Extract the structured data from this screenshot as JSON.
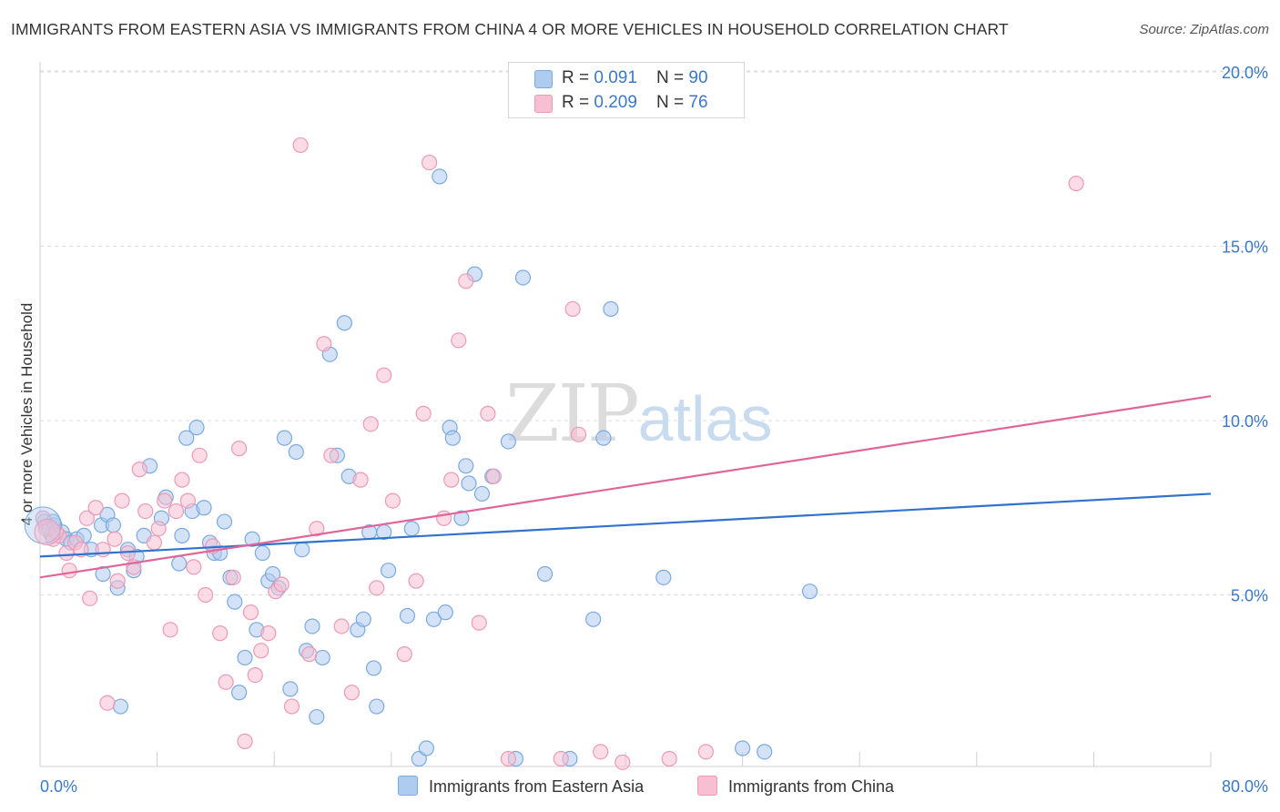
{
  "header": {
    "title": "IMMIGRANTS FROM EASTERN ASIA VS IMMIGRANTS FROM CHINA 4 OR MORE VEHICLES IN HOUSEHOLD CORRELATION CHART",
    "source": "Source: ZipAtlas.com"
  },
  "legend": {
    "blue": {
      "r_label": "R = ",
      "r_value": "0.091",
      "n_label": "N = ",
      "n_value": "90"
    },
    "pink": {
      "r_label": "R = ",
      "r_value": "0.209",
      "n_label": "N = ",
      "n_value": "76"
    }
  },
  "watermark": {
    "zip": "ZIP",
    "atlas": "atlas"
  },
  "colors": {
    "blue_fill": "#aecbf0",
    "blue_stroke": "#7aaae0",
    "blue_line": "#2f73cf",
    "pink_fill": "#f7bfd1",
    "pink_stroke": "#ec9ab6",
    "pink_line": "#e0669a",
    "tick_text": "#3a78c9",
    "grid": "#dddddd"
  },
  "chart_data": {
    "type": "scatter",
    "title": "IMMIGRANTS FROM EASTERN ASIA VS IMMIGRANTS FROM CHINA 4 OR MORE VEHICLES IN HOUSEHOLD CORRELATION CHART",
    "xlabel": "",
    "ylabel": "4 or more Vehicles in Household",
    "xlim": [
      0,
      80
    ],
    "ylim": [
      0,
      21
    ],
    "x_ticks": [
      "0.0%",
      "80.0%"
    ],
    "y_ticks": [
      {
        "value": 5,
        "label": "5.0%"
      },
      {
        "value": 10,
        "label": "10.0%"
      },
      {
        "value": 15,
        "label": "15.0%"
      },
      {
        "value": 20,
        "label": "20.0%"
      }
    ],
    "grid": "horizontal dashed",
    "legend_position": "top-center",
    "series": [
      {
        "name": "Immigrants from Eastern Asia",
        "color": "#aecbf0",
        "trend": {
          "x": [
            0,
            80
          ],
          "y": [
            6.1,
            7.9
          ]
        },
        "points": [
          [
            0.3,
            7.1
          ],
          [
            0.8,
            6.7
          ],
          [
            1.0,
            7.0
          ],
          [
            1.5,
            6.8
          ],
          [
            1.8,
            6.6
          ],
          [
            2.1,
            6.5
          ],
          [
            2.5,
            6.6
          ],
          [
            3.0,
            6.7
          ],
          [
            3.5,
            6.3
          ],
          [
            4.2,
            7.0
          ],
          [
            4.3,
            5.6
          ],
          [
            4.6,
            7.3
          ],
          [
            5.0,
            7.0
          ],
          [
            5.3,
            5.2
          ],
          [
            5.5,
            1.8
          ],
          [
            6.0,
            6.3
          ],
          [
            6.4,
            5.7
          ],
          [
            6.6,
            6.1
          ],
          [
            7.1,
            6.7
          ],
          [
            7.5,
            8.7
          ],
          [
            8.3,
            7.2
          ],
          [
            8.6,
            7.8
          ],
          [
            9.5,
            5.9
          ],
          [
            9.7,
            6.7
          ],
          [
            10.0,
            9.5
          ],
          [
            10.4,
            7.4
          ],
          [
            10.7,
            9.8
          ],
          [
            11.2,
            7.5
          ],
          [
            11.6,
            6.5
          ],
          [
            11.9,
            6.2
          ],
          [
            12.3,
            6.2
          ],
          [
            12.6,
            7.1
          ],
          [
            13.0,
            5.5
          ],
          [
            13.3,
            4.8
          ],
          [
            13.6,
            2.2
          ],
          [
            14.0,
            3.2
          ],
          [
            14.5,
            6.6
          ],
          [
            14.8,
            4.0
          ],
          [
            15.2,
            6.2
          ],
          [
            15.6,
            5.4
          ],
          [
            15.9,
            5.6
          ],
          [
            16.3,
            5.2
          ],
          [
            16.7,
            9.5
          ],
          [
            17.1,
            2.3
          ],
          [
            17.5,
            9.1
          ],
          [
            17.9,
            6.3
          ],
          [
            18.2,
            3.4
          ],
          [
            18.6,
            4.1
          ],
          [
            18.9,
            1.5
          ],
          [
            19.3,
            3.2
          ],
          [
            19.8,
            11.9
          ],
          [
            20.3,
            9.0
          ],
          [
            20.8,
            12.8
          ],
          [
            21.1,
            8.4
          ],
          [
            21.7,
            4.0
          ],
          [
            22.1,
            4.3
          ],
          [
            22.5,
            6.8
          ],
          [
            22.8,
            2.9
          ],
          [
            23.0,
            1.8
          ],
          [
            23.5,
            6.8
          ],
          [
            23.8,
            5.7
          ],
          [
            25.1,
            4.4
          ],
          [
            25.4,
            6.9
          ],
          [
            25.9,
            0.3
          ],
          [
            26.4,
            0.6
          ],
          [
            26.9,
            4.3
          ],
          [
            27.3,
            17.0
          ],
          [
            27.7,
            4.5
          ],
          [
            28.0,
            9.8
          ],
          [
            28.2,
            9.5
          ],
          [
            28.8,
            7.2
          ],
          [
            29.1,
            8.7
          ],
          [
            29.3,
            8.2
          ],
          [
            29.7,
            14.2
          ],
          [
            30.2,
            7.9
          ],
          [
            30.9,
            8.4
          ],
          [
            32.0,
            9.4
          ],
          [
            32.5,
            0.3
          ],
          [
            33.0,
            14.1
          ],
          [
            34.5,
            5.6
          ],
          [
            36.2,
            0.3
          ],
          [
            37.8,
            4.3
          ],
          [
            38.5,
            9.5
          ],
          [
            39.0,
            13.2
          ],
          [
            42.6,
            5.5
          ],
          [
            48.0,
            0.6
          ],
          [
            49.5,
            0.5
          ],
          [
            52.6,
            5.1
          ],
          [
            0.6,
            6.9
          ],
          [
            0.9,
            7.1
          ]
        ]
      },
      {
        "name": "Immigrants from China",
        "color": "#f7bfd1",
        "trend": {
          "x": [
            0,
            80
          ],
          "y": [
            5.5,
            10.7
          ]
        },
        "points": [
          [
            0.4,
            6.9
          ],
          [
            0.9,
            6.6
          ],
          [
            1.3,
            6.7
          ],
          [
            1.8,
            6.2
          ],
          [
            2.0,
            5.7
          ],
          [
            2.4,
            6.5
          ],
          [
            2.8,
            6.3
          ],
          [
            3.2,
            7.2
          ],
          [
            3.4,
            4.9
          ],
          [
            3.8,
            7.5
          ],
          [
            4.3,
            6.3
          ],
          [
            4.6,
            1.9
          ],
          [
            5.1,
            6.6
          ],
          [
            5.3,
            5.4
          ],
          [
            5.6,
            7.7
          ],
          [
            6.0,
            6.2
          ],
          [
            6.4,
            5.8
          ],
          [
            6.8,
            8.6
          ],
          [
            7.2,
            7.4
          ],
          [
            7.8,
            6.5
          ],
          [
            8.1,
            6.9
          ],
          [
            8.5,
            7.7
          ],
          [
            8.9,
            4.0
          ],
          [
            9.3,
            7.4
          ],
          [
            9.7,
            8.3
          ],
          [
            10.1,
            7.7
          ],
          [
            10.5,
            5.8
          ],
          [
            10.9,
            9.0
          ],
          [
            11.3,
            5.0
          ],
          [
            11.8,
            6.4
          ],
          [
            12.3,
            3.9
          ],
          [
            12.7,
            2.5
          ],
          [
            13.2,
            5.5
          ],
          [
            13.6,
            9.2
          ],
          [
            14.0,
            0.8
          ],
          [
            14.4,
            4.5
          ],
          [
            14.7,
            2.7
          ],
          [
            15.1,
            3.4
          ],
          [
            15.6,
            3.9
          ],
          [
            16.1,
            5.1
          ],
          [
            16.5,
            5.3
          ],
          [
            17.2,
            1.8
          ],
          [
            17.8,
            17.9
          ],
          [
            18.4,
            3.3
          ],
          [
            18.9,
            6.9
          ],
          [
            19.4,
            12.2
          ],
          [
            19.9,
            9.0
          ],
          [
            20.6,
            4.1
          ],
          [
            21.3,
            2.2
          ],
          [
            21.9,
            8.3
          ],
          [
            22.6,
            9.9
          ],
          [
            23.0,
            5.2
          ],
          [
            23.5,
            11.3
          ],
          [
            24.1,
            7.7
          ],
          [
            24.9,
            3.3
          ],
          [
            25.7,
            5.4
          ],
          [
            26.2,
            10.2
          ],
          [
            26.6,
            17.4
          ],
          [
            27.6,
            7.2
          ],
          [
            28.1,
            8.3
          ],
          [
            28.6,
            12.3
          ],
          [
            29.1,
            14.0
          ],
          [
            30.0,
            4.2
          ],
          [
            30.6,
            10.2
          ],
          [
            31.0,
            8.4
          ],
          [
            32.0,
            0.3
          ],
          [
            35.6,
            0.3
          ],
          [
            36.4,
            13.2
          ],
          [
            36.8,
            9.6
          ],
          [
            38.3,
            0.5
          ],
          [
            39.8,
            0.2
          ],
          [
            43.0,
            0.3
          ],
          [
            45.5,
            0.5
          ],
          [
            70.8,
            16.8
          ],
          [
            0.2,
            7.2
          ],
          [
            1.1,
            6.8
          ]
        ]
      }
    ]
  },
  "bottom_legend": {
    "blue_label": "Immigrants from Eastern Asia",
    "pink_label": "Immigrants from China"
  }
}
